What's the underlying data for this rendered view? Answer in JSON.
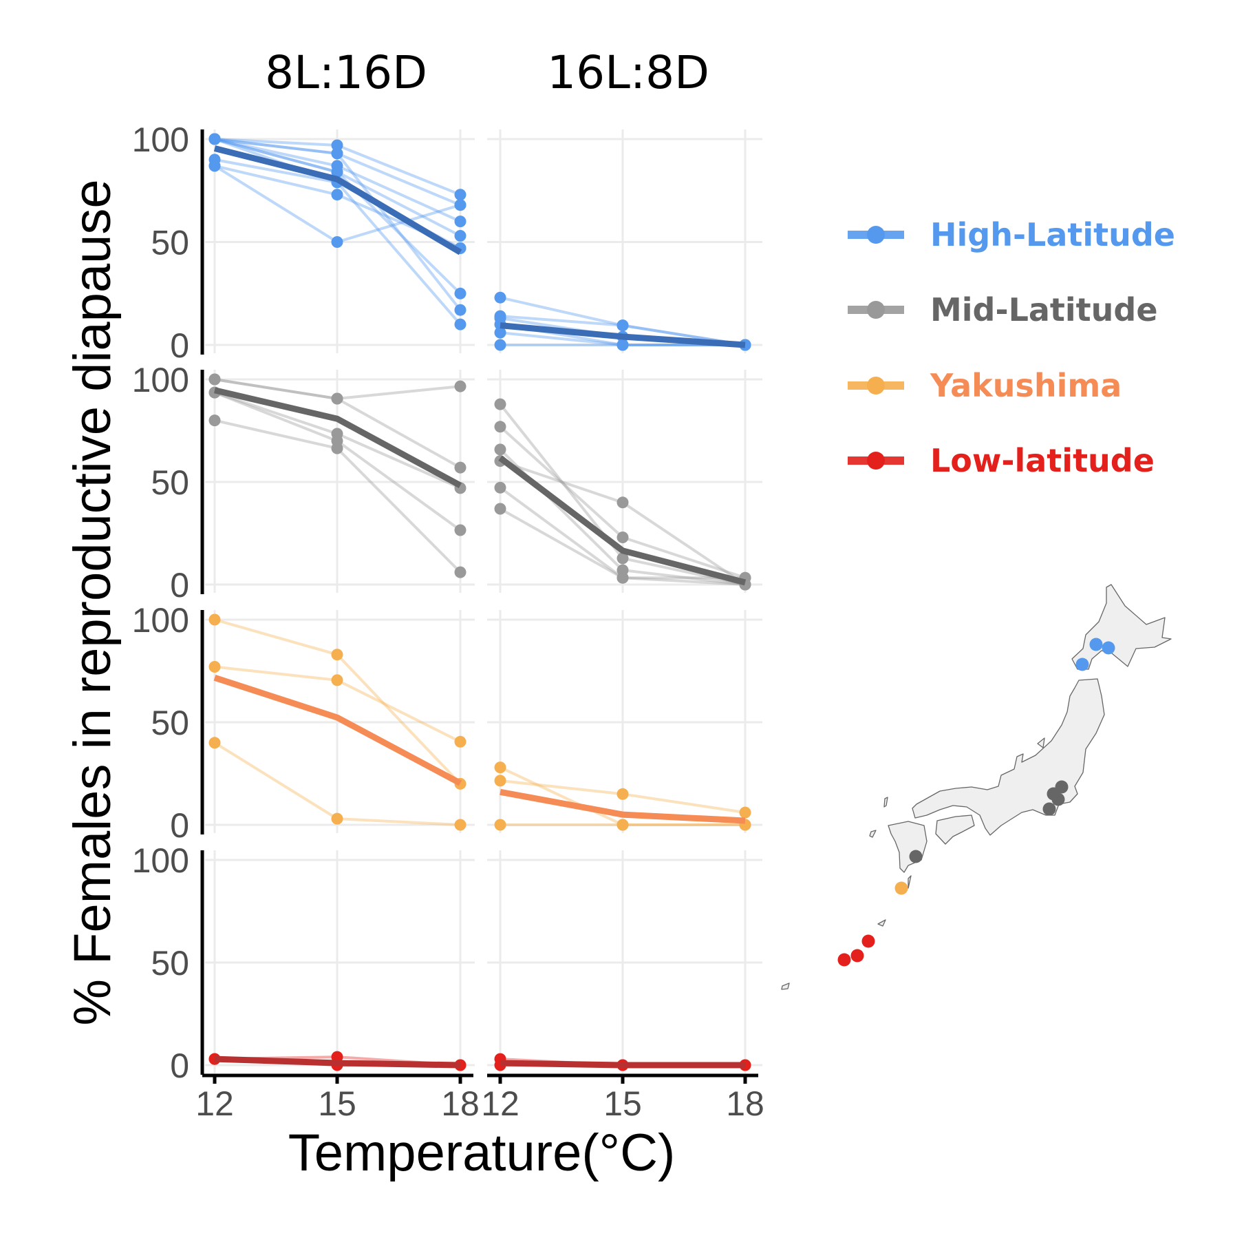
{
  "chart_data": {
    "type": "line",
    "title": "",
    "xlabel": "Temperature(°C)",
    "ylabel": "% Females in reproductive diapause",
    "x": [
      12,
      15,
      18
    ],
    "x_tick_labels": [
      "12",
      "15",
      "18"
    ],
    "y_tick_labels": [
      "0",
      "50",
      "100"
    ],
    "ylim": [
      0,
      100
    ],
    "grid": true,
    "facet_columns": [
      "8L:16D",
      "16L:8D"
    ],
    "legend_position": "right",
    "groups": [
      {
        "name": "High-Latitude",
        "color": "#5599EE",
        "mean_color": "#3A6DB5",
        "panels": {
          "8L:16D": {
            "populations": [
              [
                100,
                97,
                73
              ],
              [
                100,
                93,
                68
              ],
              [
                100,
                87,
                60
              ],
              [
                100,
                84,
                53
              ],
              [
                100,
                79,
                47
              ],
              [
                100,
                84,
                25
              ],
              [
                100,
                93,
                17
              ],
              [
                90,
                79,
                10
              ],
              [
                87,
                73,
                47
              ],
              [
                87,
                50,
                68
              ]
            ],
            "mean": [
              95.5,
              80.5,
              45
            ]
          },
          "16L:8D": {
            "populations": [
              [
                23,
                9.5,
                0
              ],
              [
                14,
                9.5,
                0
              ],
              [
                13,
                4,
                0
              ],
              [
                10,
                0,
                0
              ],
              [
                6,
                0,
                0
              ],
              [
                0,
                0,
                0
              ]
            ],
            "mean": [
              9.5,
              4,
              0
            ]
          }
        }
      },
      {
        "name": "Mid-Latitude",
        "color": "#999999",
        "mean_color": "#666666",
        "text_color": "#666666",
        "panels": {
          "8L:16D": {
            "populations": [
              [
                100,
                90.6,
                96.6
              ],
              [
                100,
                90.6,
                57
              ],
              [
                93.6,
                73.5,
                47
              ],
              [
                93.6,
                70,
                26.5
              ],
              [
                80,
                66.4,
                6
              ]
            ],
            "mean": [
              94.7,
              80.8,
              48.3
            ]
          },
          "16L:8D": {
            "populations": [
              [
                87.9,
                12.8,
                0
              ],
              [
                76.9,
                23,
                3.3
              ],
              [
                65.8,
                7,
                0
              ],
              [
                60.2,
                40,
                0
              ],
              [
                47.2,
                3.3,
                0
              ],
              [
                36.9,
                3.3,
                3.3
              ]
            ],
            "mean": [
              61.7,
              16.5,
              1
            ]
          }
        }
      },
      {
        "name": "Yakushima",
        "color": "#F5AF4F",
        "mean_color": "#F58B55",
        "text_color": "#F58B55",
        "panels": {
          "8L:16D": {
            "populations": [
              [
                100,
                83,
                20
              ],
              [
                77,
                70.5,
                40.5
              ],
              [
                40,
                3,
                0
              ]
            ],
            "mean": [
              71.7,
              52.3,
              20.3
            ]
          },
          "16L:8D": {
            "populations": [
              [
                28,
                0,
                0
              ],
              [
                21.5,
                15,
                6
              ],
              [
                0,
                0,
                0
              ]
            ],
            "mean": [
              16,
              5,
              2
            ]
          }
        }
      },
      {
        "name": "Low-latitude",
        "color": "#E3201C",
        "mean_color": "#B83030",
        "panels": {
          "8L:16D": {
            "populations": [
              [
                3,
                4,
                0
              ],
              [
                3,
                0,
                0
              ]
            ],
            "mean": [
              3,
              1,
              0
            ]
          },
          "16L:8D": {
            "populations": [
              [
                3,
                0,
                0
              ],
              [
                0,
                0,
                0
              ]
            ],
            "mean": [
              1,
              0,
              0
            ]
          }
        }
      }
    ]
  },
  "map": {
    "name": "Japan sampling sites",
    "sites": [
      {
        "group": "High-Latitude",
        "count": 3
      },
      {
        "group": "Mid-Latitude",
        "count": 5
      },
      {
        "group": "Yakushima",
        "count": 1
      },
      {
        "group": "Low-latitude",
        "count": 3
      }
    ]
  }
}
